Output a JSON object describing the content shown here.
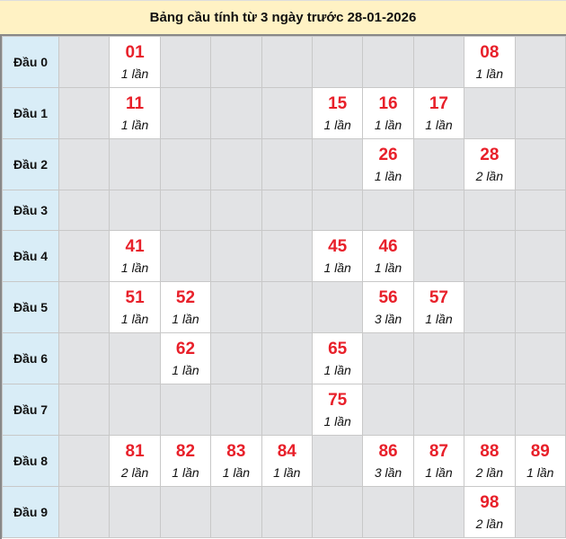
{
  "title": "Bảng cầu tính từ 3 ngày trước 28-01-2026",
  "colors": {
    "number": "#e8202a",
    "title_bg": "#fff2c4",
    "head_bg": "#d9edf7",
    "empty_bg": "#e2e3e5",
    "hit_bg": "#ffffff"
  },
  "rows": [
    {
      "label": "Đầu 0",
      "cells": [
        null,
        {
          "num": "01",
          "count": "1 lần"
        },
        null,
        null,
        null,
        null,
        null,
        null,
        {
          "num": "08",
          "count": "1 lần"
        },
        null
      ]
    },
    {
      "label": "Đầu 1",
      "cells": [
        null,
        {
          "num": "11",
          "count": "1 lần"
        },
        null,
        null,
        null,
        {
          "num": "15",
          "count": "1 lần"
        },
        {
          "num": "16",
          "count": "1 lần"
        },
        {
          "num": "17",
          "count": "1 lần"
        },
        null,
        null
      ]
    },
    {
      "label": "Đầu 2",
      "cells": [
        null,
        null,
        null,
        null,
        null,
        null,
        {
          "num": "26",
          "count": "1 lần"
        },
        null,
        {
          "num": "28",
          "count": "2 lần"
        },
        null
      ]
    },
    {
      "label": "Đầu 3",
      "cells": [
        null,
        null,
        null,
        null,
        null,
        null,
        null,
        null,
        null,
        null
      ]
    },
    {
      "label": "Đầu 4",
      "cells": [
        null,
        {
          "num": "41",
          "count": "1 lần"
        },
        null,
        null,
        null,
        {
          "num": "45",
          "count": "1 lần"
        },
        {
          "num": "46",
          "count": "1 lần"
        },
        null,
        null,
        null
      ]
    },
    {
      "label": "Đầu 5",
      "cells": [
        null,
        {
          "num": "51",
          "count": "1 lần"
        },
        {
          "num": "52",
          "count": "1 lần"
        },
        null,
        null,
        null,
        {
          "num": "56",
          "count": "3 lần"
        },
        {
          "num": "57",
          "count": "1 lần"
        },
        null,
        null
      ]
    },
    {
      "label": "Đầu 6",
      "cells": [
        null,
        null,
        {
          "num": "62",
          "count": "1 lần"
        },
        null,
        null,
        {
          "num": "65",
          "count": "1 lần"
        },
        null,
        null,
        null,
        null
      ]
    },
    {
      "label": "Đầu 7",
      "cells": [
        null,
        null,
        null,
        null,
        null,
        {
          "num": "75",
          "count": "1 lần"
        },
        null,
        null,
        null,
        null
      ]
    },
    {
      "label": "Đầu 8",
      "cells": [
        null,
        {
          "num": "81",
          "count": "2 lần"
        },
        {
          "num": "82",
          "count": "1 lần"
        },
        {
          "num": "83",
          "count": "1 lần"
        },
        {
          "num": "84",
          "count": "1 lần"
        },
        null,
        {
          "num": "86",
          "count": "3 lần"
        },
        {
          "num": "87",
          "count": "1 lần"
        },
        {
          "num": "88",
          "count": "2 lần"
        },
        {
          "num": "89",
          "count": "1 lần"
        }
      ]
    },
    {
      "label": "Đầu 9",
      "cells": [
        null,
        null,
        null,
        null,
        null,
        null,
        null,
        null,
        {
          "num": "98",
          "count": "2 lần"
        },
        null
      ]
    }
  ]
}
